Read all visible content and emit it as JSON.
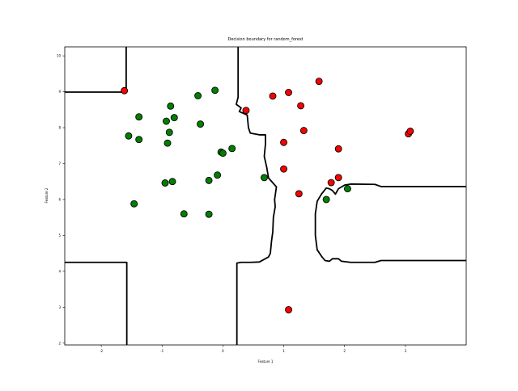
{
  "chart_data": {
    "type": "scatter",
    "title": "Decision boundary for random_forest",
    "xlabel": "Feature 1",
    "ylabel": "Feature 2",
    "xlim": [
      -2.6,
      4.0
    ],
    "ylim": [
      1.95,
      10.25
    ],
    "x_ticks": [
      -2,
      -1,
      0,
      1,
      2,
      3
    ],
    "y_ticks": [
      2,
      3,
      4,
      5,
      6,
      7,
      8,
      9,
      10
    ],
    "grid": false,
    "legend": "none",
    "series": [
      {
        "color": "#008000",
        "points": [
          [
            -1.55,
            7.77
          ],
          [
            -1.38,
            8.3
          ],
          [
            -1.38,
            7.67
          ],
          [
            -1.46,
            5.88
          ],
          [
            -0.86,
            8.6
          ],
          [
            -0.93,
            8.18
          ],
          [
            -0.8,
            8.28
          ],
          [
            -0.88,
            7.87
          ],
          [
            -0.91,
            7.57
          ],
          [
            -0.41,
            8.89
          ],
          [
            -0.13,
            9.04
          ],
          [
            -0.37,
            8.1
          ],
          [
            -0.03,
            7.32
          ],
          [
            -0.23,
            6.53
          ],
          [
            -0.09,
            6.68
          ],
          [
            0.0,
            7.29
          ],
          [
            0.15,
            7.42
          ],
          [
            -0.95,
            6.46
          ],
          [
            -0.83,
            6.5
          ],
          [
            -0.64,
            5.6
          ],
          [
            -0.23,
            5.59
          ],
          [
            0.68,
            6.61
          ],
          [
            1.7,
            6.0
          ],
          [
            2.05,
            6.3
          ]
        ]
      },
      {
        "color": "#ff0000",
        "points": [
          [
            -1.62,
            9.03
          ],
          [
            0.38,
            8.48
          ],
          [
            0.82,
            8.88
          ],
          [
            1.08,
            8.98
          ],
          [
            1.28,
            8.61
          ],
          [
            1.58,
            9.29
          ],
          [
            1.33,
            7.92
          ],
          [
            1.0,
            7.59
          ],
          [
            1.0,
            6.85
          ],
          [
            1.25,
            6.16
          ],
          [
            1.9,
            7.41
          ],
          [
            1.78,
            6.47
          ],
          [
            1.9,
            6.61
          ],
          [
            3.05,
            7.83
          ],
          [
            3.08,
            7.9
          ],
          [
            1.08,
            2.93
          ]
        ]
      }
    ]
  }
}
